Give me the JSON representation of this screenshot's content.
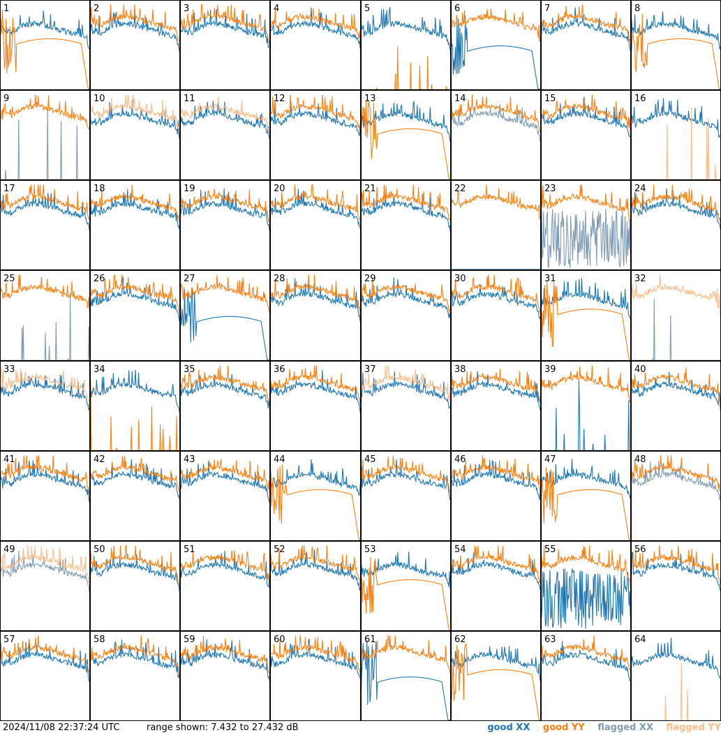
{
  "footer": {
    "timestamp": "2024/11/08 22:37:24 UTC",
    "range_text": "range shown: 7.432 to 27.432 dB"
  },
  "legend": [
    {
      "label": "good XX",
      "color": "#1f77b4"
    },
    {
      "label": "good YY",
      "color": "#ff7f0e"
    },
    {
      "label": "flagged XX",
      "color": "#7f9bb5"
    },
    {
      "label": "flagged YY",
      "color": "#ffbb88"
    }
  ],
  "chart_data": {
    "type": "line",
    "title": "",
    "ylim": [
      7.432,
      27.432
    ],
    "grid": false,
    "rows": 8,
    "cols": 8,
    "series_names": [
      "good XX",
      "good YY",
      "flagged XX",
      "flagged YY"
    ],
    "panels": [
      {
        "label": "1",
        "xx": "good",
        "yy": "bad"
      },
      {
        "label": "2",
        "xx": "good",
        "yy": "good"
      },
      {
        "label": "3",
        "xx": "good",
        "yy": "good"
      },
      {
        "label": "4",
        "xx": "good",
        "yy": "good"
      },
      {
        "label": "5",
        "xx": "good",
        "yy": "spikes"
      },
      {
        "label": "6",
        "xx": "bad",
        "yy": "good"
      },
      {
        "label": "7",
        "xx": "good",
        "yy": "good"
      },
      {
        "label": "8",
        "xx": "good",
        "yy": "bad"
      },
      {
        "label": "9",
        "xx": "flagged-spikes",
        "yy": "good"
      },
      {
        "label": "10",
        "xx": "good",
        "yy": "flagged"
      },
      {
        "label": "11",
        "xx": "good",
        "yy": "flagged"
      },
      {
        "label": "12",
        "xx": "good",
        "yy": "good"
      },
      {
        "label": "13",
        "xx": "good",
        "yy": "bad"
      },
      {
        "label": "14",
        "xx": "flagged",
        "yy": "good"
      },
      {
        "label": "15",
        "xx": "good",
        "yy": "good"
      },
      {
        "label": "16",
        "xx": "good",
        "yy": "flagged-spikes"
      },
      {
        "label": "17",
        "xx": "good",
        "yy": "good"
      },
      {
        "label": "18",
        "xx": "good",
        "yy": "good"
      },
      {
        "label": "19",
        "xx": "good",
        "yy": "good"
      },
      {
        "label": "20",
        "xx": "good",
        "yy": "good"
      },
      {
        "label": "21",
        "xx": "good",
        "yy": "good"
      },
      {
        "label": "22",
        "xx": "flat",
        "yy": "good"
      },
      {
        "label": "23",
        "xx": "flagged-noise",
        "yy": "good"
      },
      {
        "label": "24",
        "xx": "good",
        "yy": "good"
      },
      {
        "label": "25",
        "xx": "flagged-spikes",
        "yy": "good"
      },
      {
        "label": "26",
        "xx": "good",
        "yy": "good"
      },
      {
        "label": "27",
        "xx": "bad",
        "yy": "good"
      },
      {
        "label": "28",
        "xx": "good",
        "yy": "good"
      },
      {
        "label": "29",
        "xx": "good",
        "yy": "good"
      },
      {
        "label": "30",
        "xx": "good",
        "yy": "good"
      },
      {
        "label": "31",
        "xx": "good",
        "yy": "bad"
      },
      {
        "label": "32",
        "xx": "flagged-spikes",
        "yy": "flagged"
      },
      {
        "label": "33",
        "xx": "good",
        "yy": "flagged"
      },
      {
        "label": "34",
        "xx": "good",
        "yy": "spikes"
      },
      {
        "label": "35",
        "xx": "good",
        "yy": "good"
      },
      {
        "label": "36",
        "xx": "good",
        "yy": "good"
      },
      {
        "label": "37",
        "xx": "good",
        "yy": "flagged"
      },
      {
        "label": "38",
        "xx": "good",
        "yy": "good"
      },
      {
        "label": "39",
        "xx": "spikes",
        "yy": "good"
      },
      {
        "label": "40",
        "xx": "good",
        "yy": "good"
      },
      {
        "label": "41",
        "xx": "good",
        "yy": "good"
      },
      {
        "label": "42",
        "xx": "good",
        "yy": "good"
      },
      {
        "label": "43",
        "xx": "good",
        "yy": "good"
      },
      {
        "label": "44",
        "xx": "good",
        "yy": "bad"
      },
      {
        "label": "45",
        "xx": "good",
        "yy": "good"
      },
      {
        "label": "46",
        "xx": "good",
        "yy": "good"
      },
      {
        "label": "47",
        "xx": "good",
        "yy": "bad"
      },
      {
        "label": "48",
        "xx": "flagged",
        "yy": "good"
      },
      {
        "label": "49",
        "xx": "flagged",
        "yy": "flagged"
      },
      {
        "label": "50",
        "xx": "good",
        "yy": "good"
      },
      {
        "label": "51",
        "xx": "good",
        "yy": "good"
      },
      {
        "label": "52",
        "xx": "good",
        "yy": "good"
      },
      {
        "label": "53",
        "xx": "good",
        "yy": "bad"
      },
      {
        "label": "54",
        "xx": "good",
        "yy": "good"
      },
      {
        "label": "55",
        "xx": "noise",
        "yy": "good"
      },
      {
        "label": "56",
        "xx": "good",
        "yy": "good"
      },
      {
        "label": "57",
        "xx": "good",
        "yy": "good"
      },
      {
        "label": "58",
        "xx": "good",
        "yy": "good"
      },
      {
        "label": "59",
        "xx": "good",
        "yy": "good"
      },
      {
        "label": "60",
        "xx": "good",
        "yy": "good"
      },
      {
        "label": "61",
        "xx": "bad",
        "yy": "good"
      },
      {
        "label": "62",
        "xx": "good",
        "yy": "bad"
      },
      {
        "label": "63",
        "xx": "good",
        "yy": "good"
      },
      {
        "label": "64",
        "xx": "good",
        "yy": "flagged-spikes"
      }
    ]
  }
}
